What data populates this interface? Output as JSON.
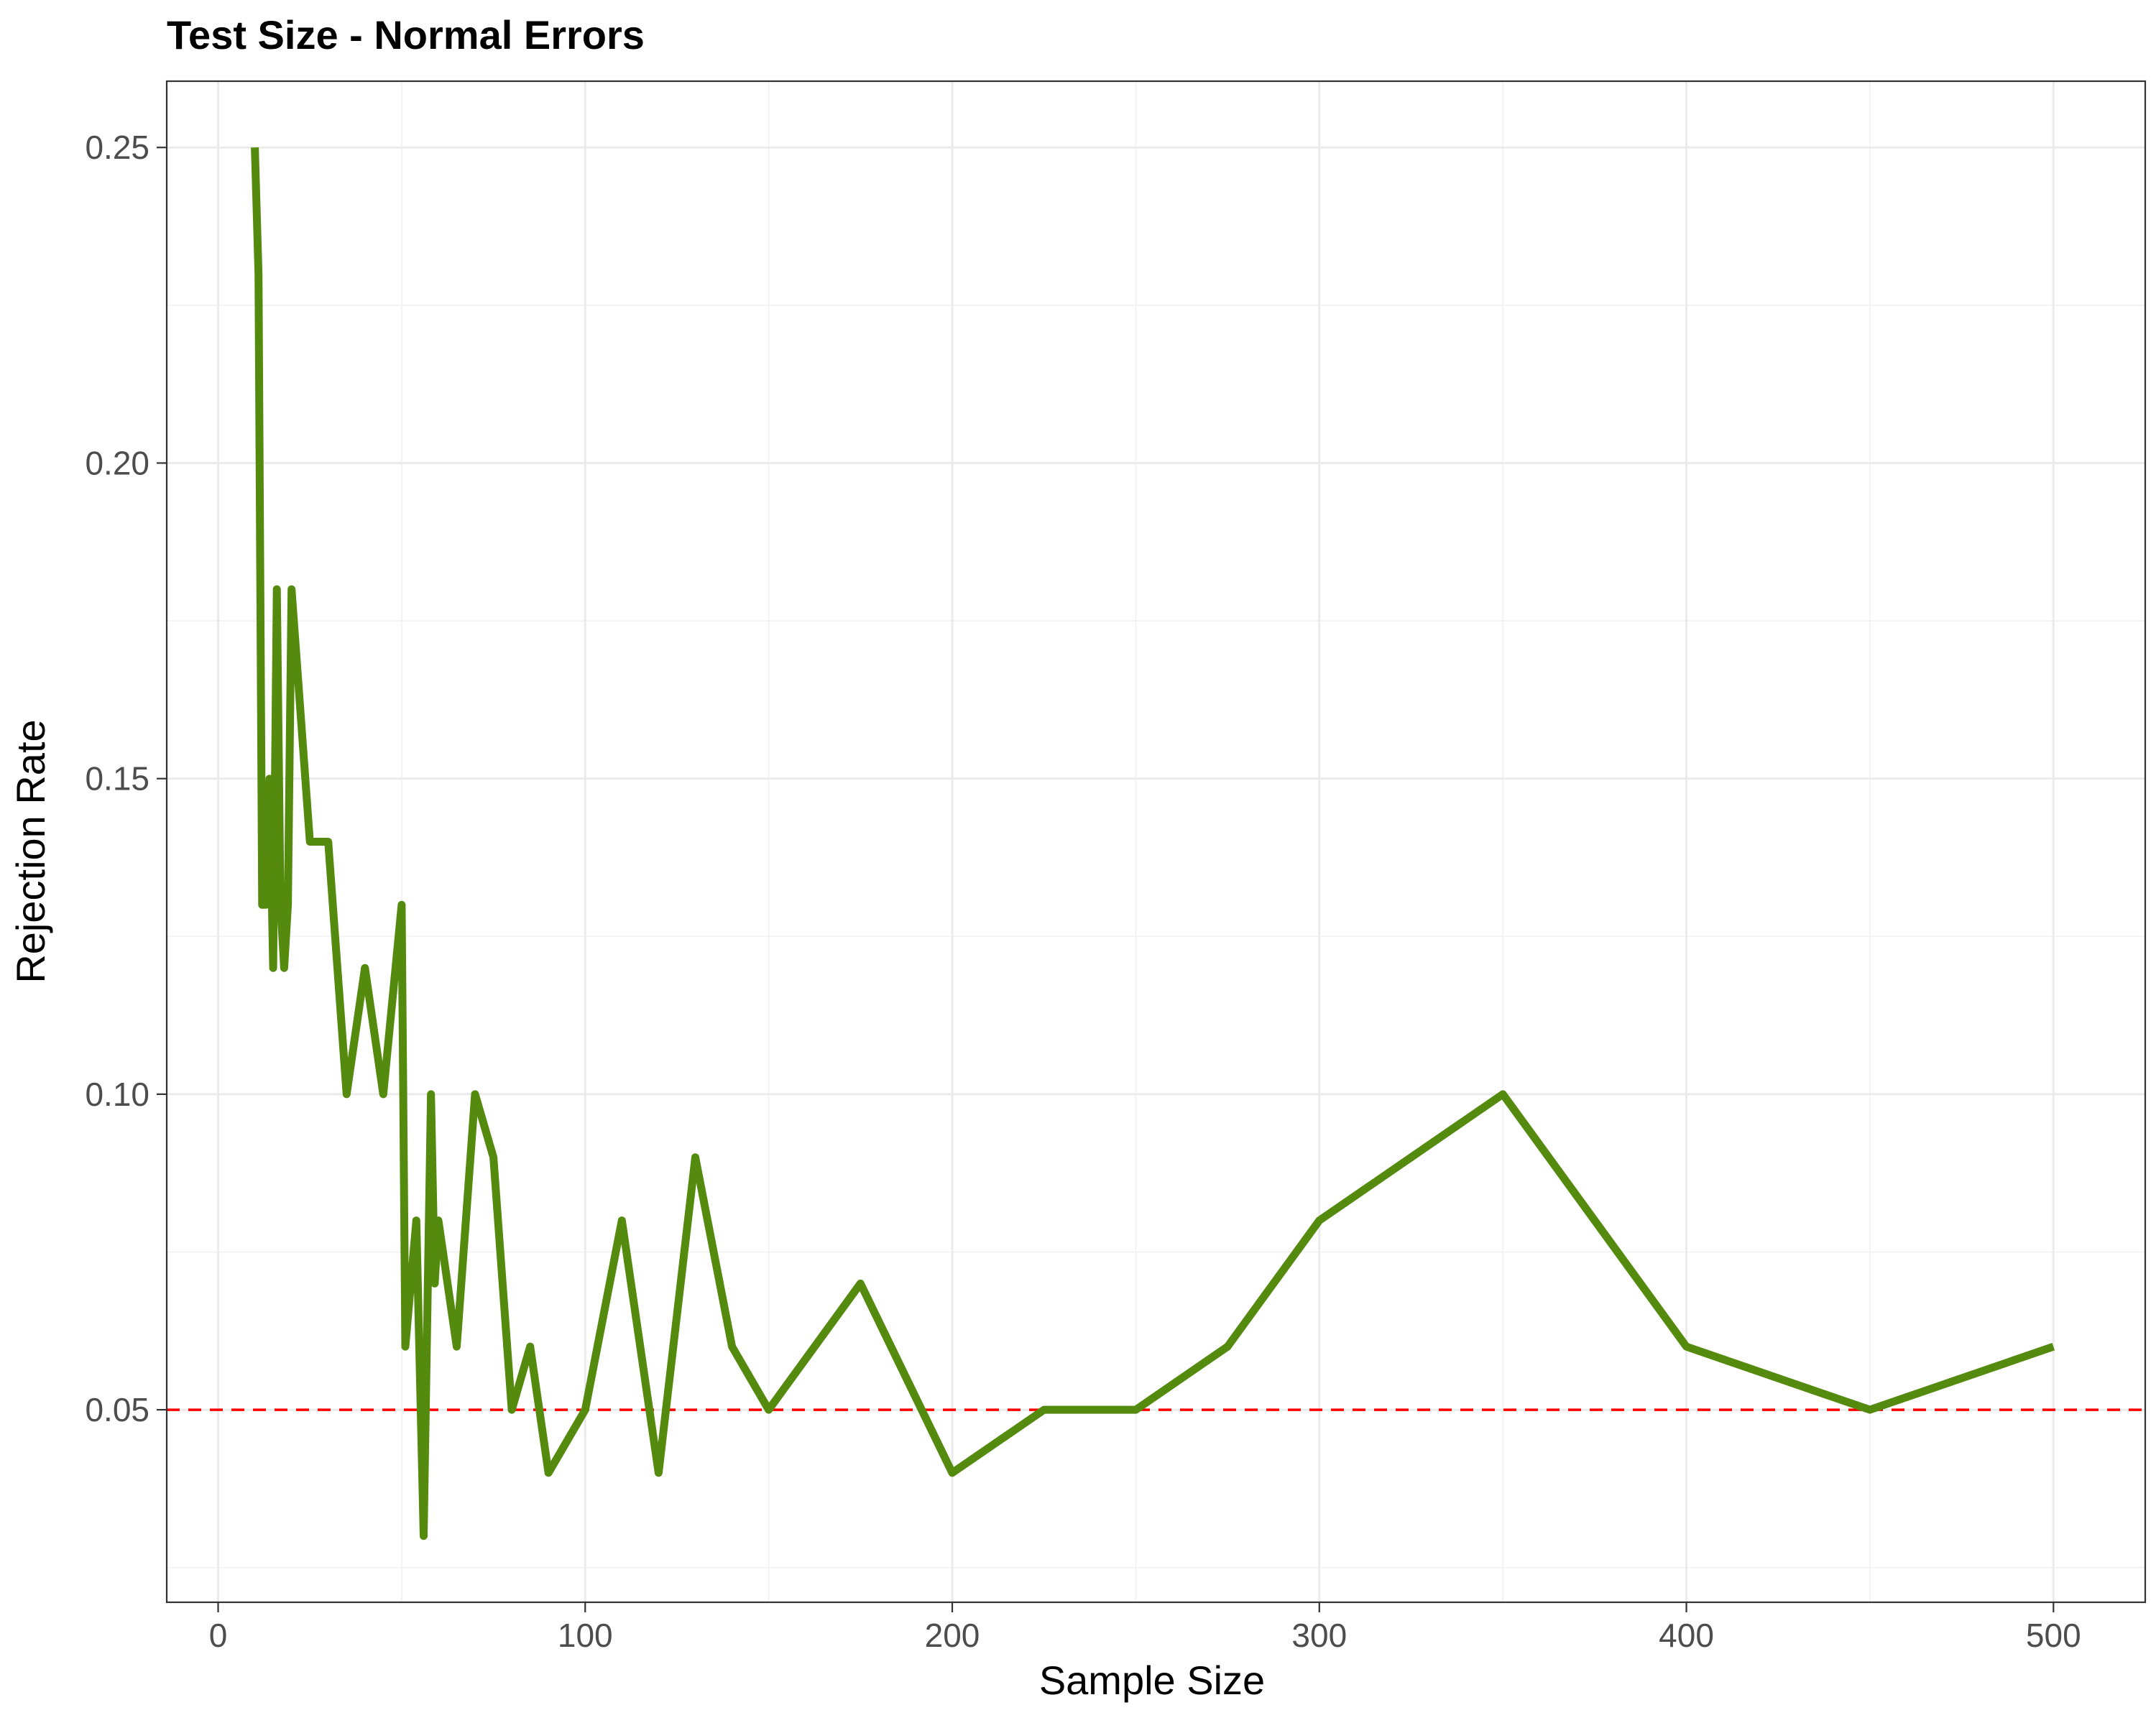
{
  "chart_data": {
    "type": "line",
    "title": "Test Size - Normal Errors",
    "xlabel": "Sample Size",
    "ylabel": "Rejection Rate",
    "xlim": [
      -14,
      525
    ],
    "ylim": [
      0.0195,
      0.2605
    ],
    "x_ticks": [
      0,
      100,
      200,
      300,
      400,
      500
    ],
    "x_tick_labels": [
      "0",
      "100",
      "200",
      "300",
      "400",
      "500"
    ],
    "y_ticks": [
      0.05,
      0.1,
      0.15,
      0.2,
      0.25
    ],
    "y_tick_labels": [
      "0.05",
      "0.10",
      "0.15",
      "0.20",
      "0.25"
    ],
    "x_minor_ticks": [
      50,
      150,
      250,
      350,
      450
    ],
    "y_minor_ticks": [
      0.025,
      0.075,
      0.125,
      0.175,
      0.225
    ],
    "grid": true,
    "series": [
      {
        "color": "#548b0e",
        "x": [
          10,
          11,
          12,
          13,
          14,
          15,
          16,
          17,
          18,
          19,
          20,
          25,
          30,
          35,
          40,
          45,
          50,
          51,
          54,
          56,
          58,
          59,
          60,
          65,
          70,
          75,
          80,
          85,
          90,
          100,
          110,
          120,
          130,
          140,
          150,
          175,
          200,
          225,
          250,
          275,
          300,
          350,
          400,
          450,
          500
        ],
        "y": [
          0.25,
          0.23,
          0.13,
          0.13,
          0.15,
          0.12,
          0.18,
          0.13,
          0.12,
          0.13,
          0.18,
          0.14,
          0.14,
          0.1,
          0.12,
          0.1,
          0.13,
          0.06,
          0.08,
          0.03,
          0.1,
          0.07,
          0.08,
          0.06,
          0.1,
          0.09,
          0.05,
          0.06,
          0.04,
          0.05,
          0.08,
          0.04,
          0.09,
          0.06,
          0.05,
          0.07,
          0.04,
          0.05,
          0.05,
          0.06,
          0.08,
          0.1,
          0.06,
          0.05,
          0.06
        ]
      }
    ],
    "reference_line": {
      "y": 0.05,
      "color": "#ff0000",
      "style": "dashed"
    }
  }
}
